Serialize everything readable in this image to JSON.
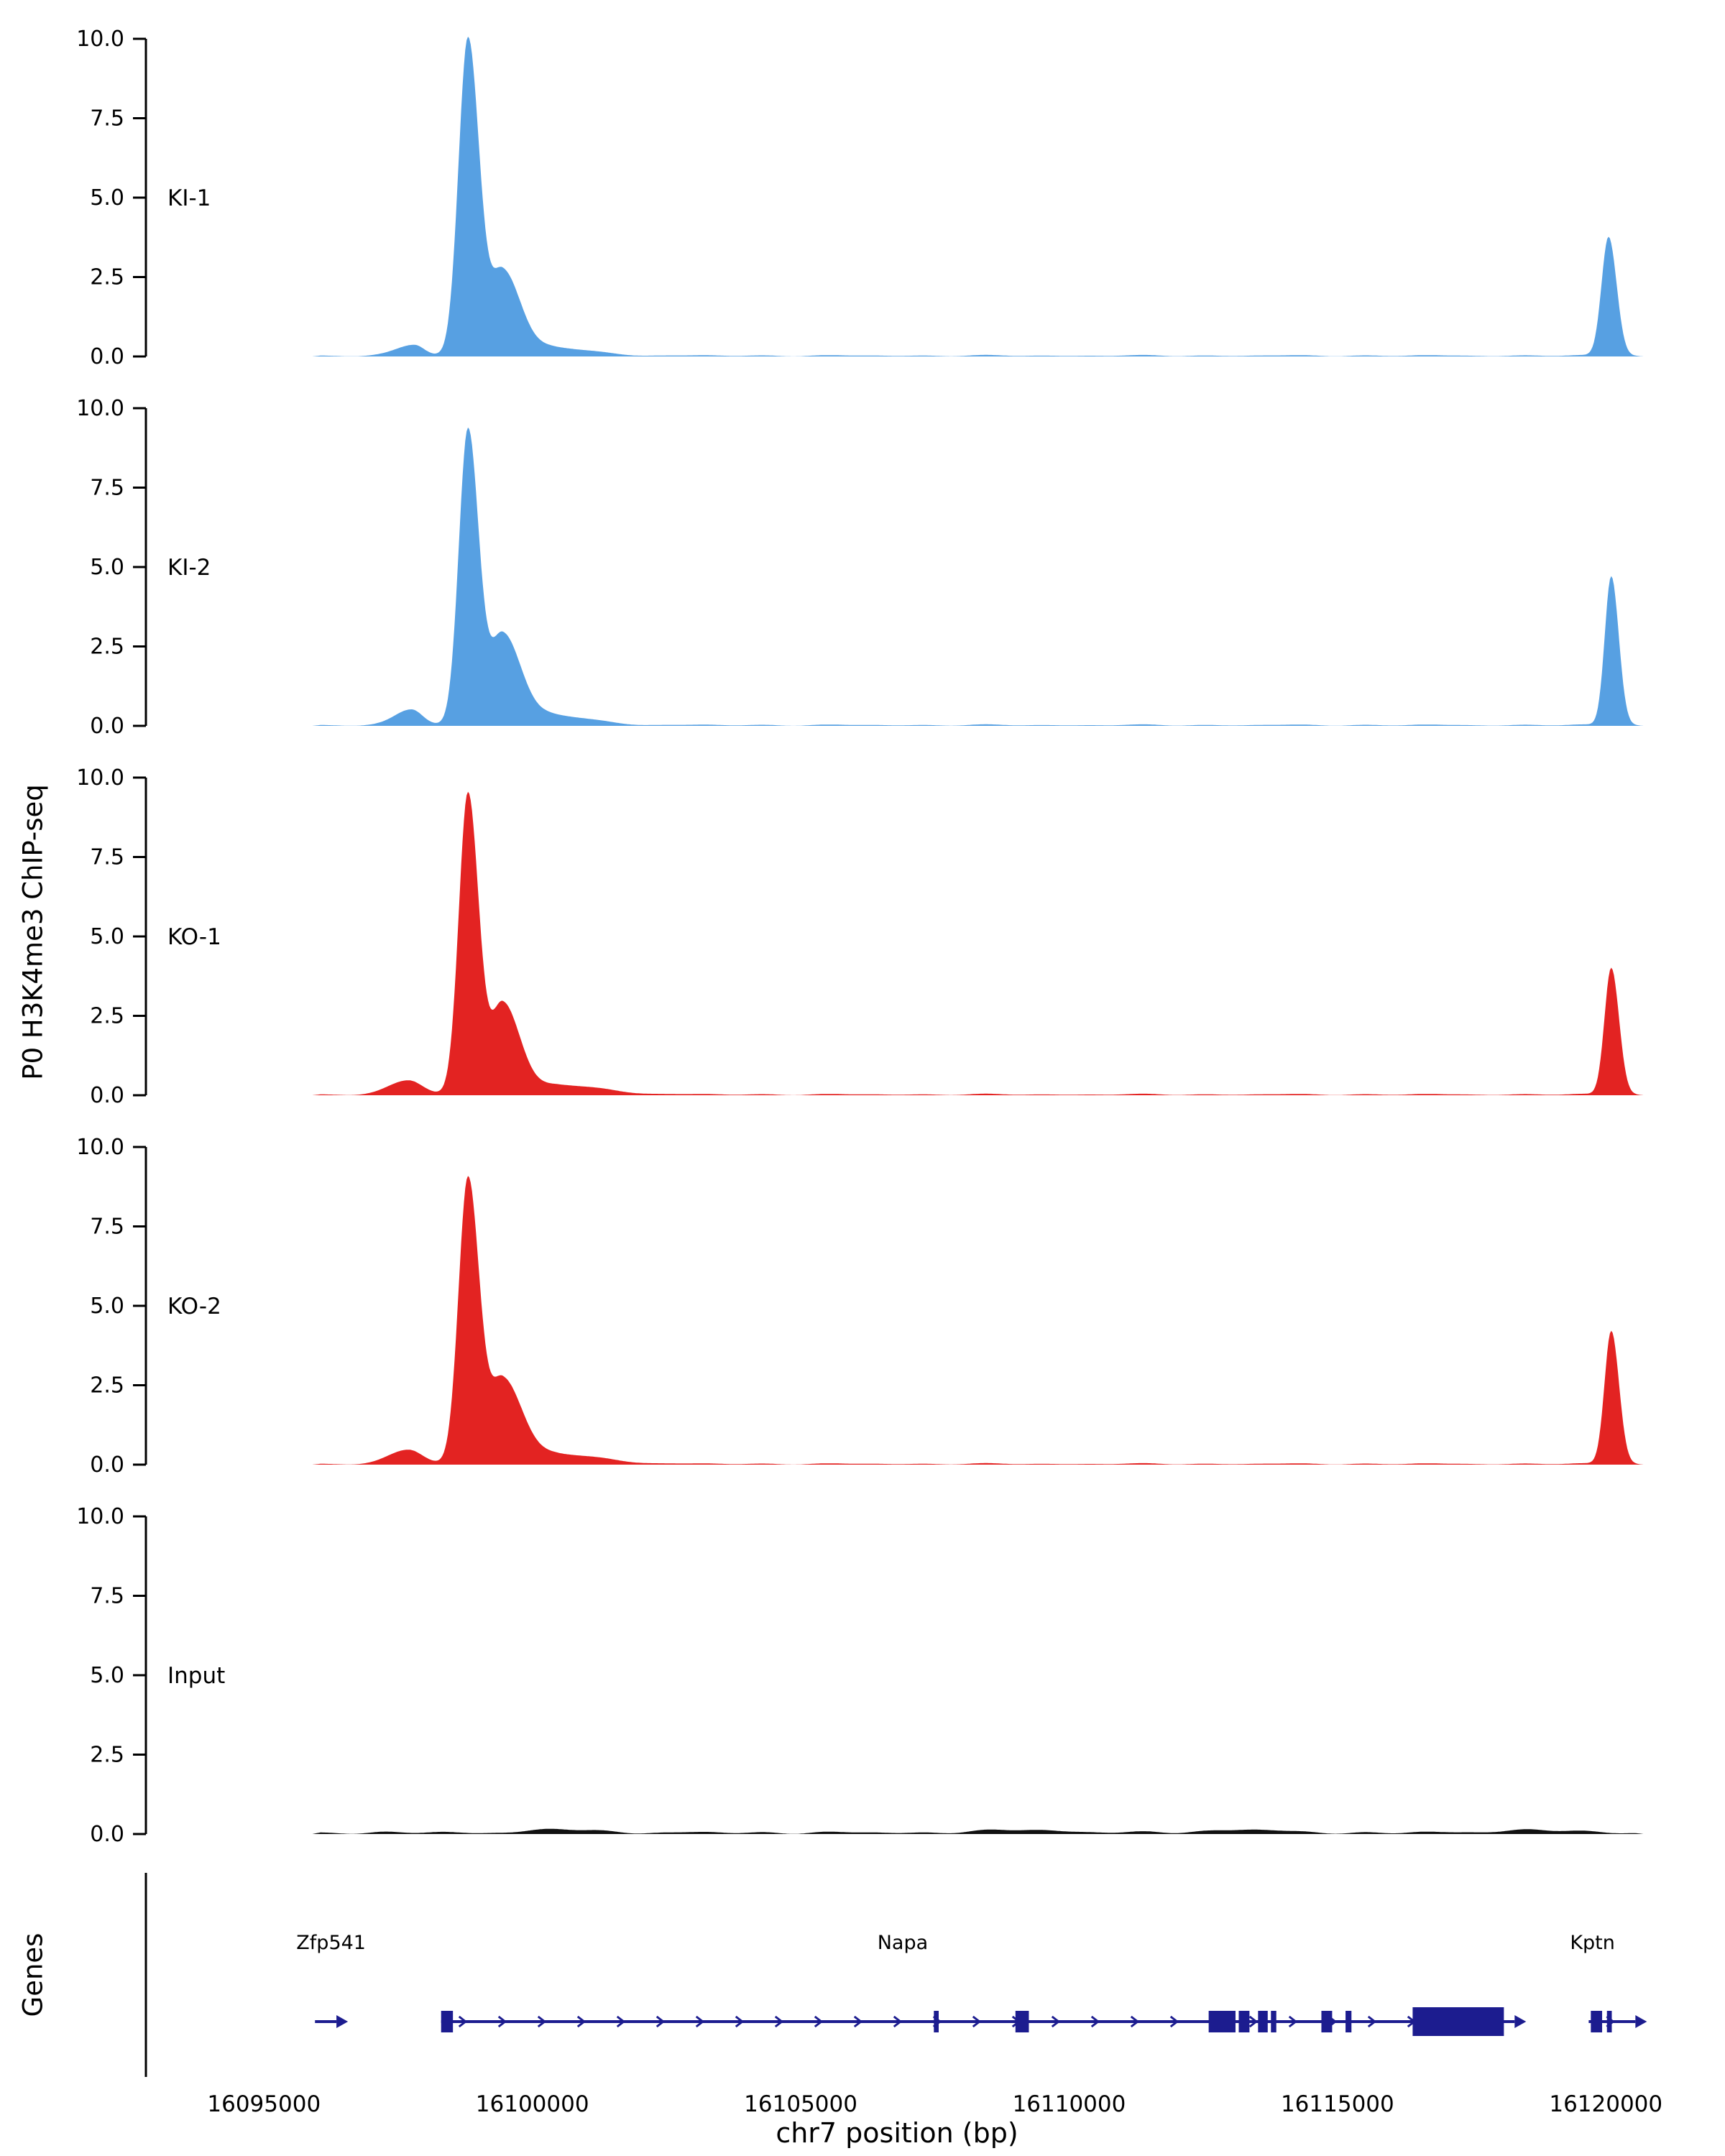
{
  "figure": {
    "ylabel": "P0 H3K4me3 ChIP-seq",
    "genes_panel_label": "Genes",
    "xlabel": "chr7 position (bp)"
  },
  "chart_data": {
    "type": "area",
    "title": "",
    "xlabel": "chr7 position (bp)",
    "ylabel": "P0 H3K4me3 ChIP-seq",
    "x_domain": [
      16092800,
      16120800
    ],
    "x_ticks": [
      16095000,
      16100000,
      16105000,
      16110000,
      16115000,
      16120000
    ],
    "x_tick_labels": [
      "16095000",
      "16100000",
      "16105000",
      "16110000",
      "16115000",
      "16120000"
    ],
    "ylim": [
      0,
      10
    ],
    "y_ticks": [
      10,
      7.5,
      5,
      2.5,
      0
    ],
    "data_extent": [
      16095900,
      16120700
    ],
    "grid": false,
    "legend": "none",
    "tracks": [
      {
        "name": "KI-1",
        "color": "#57A0E2",
        "noise": 0.05,
        "peaks": [
          {
            "center": 16097800,
            "height": 0.35,
            "sigma_l": 320,
            "sigma_r": 180
          },
          {
            "center": 16098800,
            "height": 10.0,
            "sigma_l": 175,
            "sigma_r": 210
          },
          {
            "center": 16099450,
            "height": 2.7,
            "sigma_l": 230,
            "sigma_r": 330
          },
          {
            "center": 16100400,
            "height": 0.25,
            "sigma_l": 350,
            "sigma_r": 700
          },
          {
            "center": 16120050,
            "height": 3.75,
            "sigma_l": 130,
            "sigma_r": 150
          }
        ]
      },
      {
        "name": "KI-2",
        "color": "#57A0E2",
        "noise": 0.05,
        "peaks": [
          {
            "center": 16097750,
            "height": 0.5,
            "sigma_l": 300,
            "sigma_r": 200
          },
          {
            "center": 16098800,
            "height": 9.3,
            "sigma_l": 170,
            "sigma_r": 200
          },
          {
            "center": 16099450,
            "height": 2.9,
            "sigma_l": 240,
            "sigma_r": 340
          },
          {
            "center": 16100400,
            "height": 0.3,
            "sigma_l": 350,
            "sigma_r": 700
          },
          {
            "center": 16120100,
            "height": 4.7,
            "sigma_l": 120,
            "sigma_r": 140
          }
        ]
      },
      {
        "name": "KO-1",
        "color": "#E32322",
        "noise": 0.05,
        "peaks": [
          {
            "center": 16097700,
            "height": 0.45,
            "sigma_l": 350,
            "sigma_r": 250
          },
          {
            "center": 16098800,
            "height": 9.5,
            "sigma_l": 170,
            "sigma_r": 200
          },
          {
            "center": 16099450,
            "height": 2.9,
            "sigma_l": 220,
            "sigma_r": 320
          },
          {
            "center": 16100500,
            "height": 0.3,
            "sigma_l": 400,
            "sigma_r": 800
          },
          {
            "center": 16120100,
            "height": 4.0,
            "sigma_l": 125,
            "sigma_r": 145
          }
        ]
      },
      {
        "name": "KO-2",
        "color": "#E32322",
        "noise": 0.05,
        "peaks": [
          {
            "center": 16097700,
            "height": 0.45,
            "sigma_l": 350,
            "sigma_r": 250
          },
          {
            "center": 16098800,
            "height": 9.0,
            "sigma_l": 175,
            "sigma_r": 210
          },
          {
            "center": 16099450,
            "height": 2.7,
            "sigma_l": 240,
            "sigma_r": 360
          },
          {
            "center": 16100500,
            "height": 0.3,
            "sigma_l": 400,
            "sigma_r": 800
          },
          {
            "center": 16120100,
            "height": 4.2,
            "sigma_l": 125,
            "sigma_r": 145
          }
        ]
      },
      {
        "name": "Input",
        "color": "#111111",
        "noise": 0.09,
        "peaks": [
          {
            "center": 16100600,
            "height": 0.1,
            "sigma_l": 600,
            "sigma_r": 600
          },
          {
            "center": 16109200,
            "height": 0.09,
            "sigma_l": 700,
            "sigma_r": 700
          },
          {
            "center": 16113200,
            "height": 0.1,
            "sigma_l": 600,
            "sigma_r": 600
          },
          {
            "center": 16118600,
            "height": 0.09,
            "sigma_l": 600,
            "sigma_r": 600
          }
        ]
      }
    ],
    "genes": {
      "color": "#1C1C8F",
      "items": [
        {
          "name": "Zfp541",
          "label_bp": 16096250,
          "start": 16095950,
          "end": 16096350,
          "exons": []
        },
        {
          "name": "Napa",
          "label_bp": 16106900,
          "start": 16098300,
          "end": 16118300,
          "exons": [
            [
              16098300,
              16098520
            ],
            [
              16107480,
              16107570
            ],
            [
              16109000,
              16109250
            ],
            [
              16112600,
              16113100
            ],
            [
              16113160,
              16113360
            ],
            [
              16113520,
              16113700
            ],
            [
              16113760,
              16113860
            ],
            [
              16114700,
              16114900
            ],
            [
              16115150,
              16115260
            ],
            [
              16116400,
              16118100
            ]
          ]
        },
        {
          "name": "Kptn",
          "label_bp": 16119750,
          "start": 16119680,
          "end": 16120550,
          "exons": [
            [
              16119720,
              16119930
            ],
            [
              16120020,
              16120110
            ]
          ]
        }
      ]
    }
  }
}
